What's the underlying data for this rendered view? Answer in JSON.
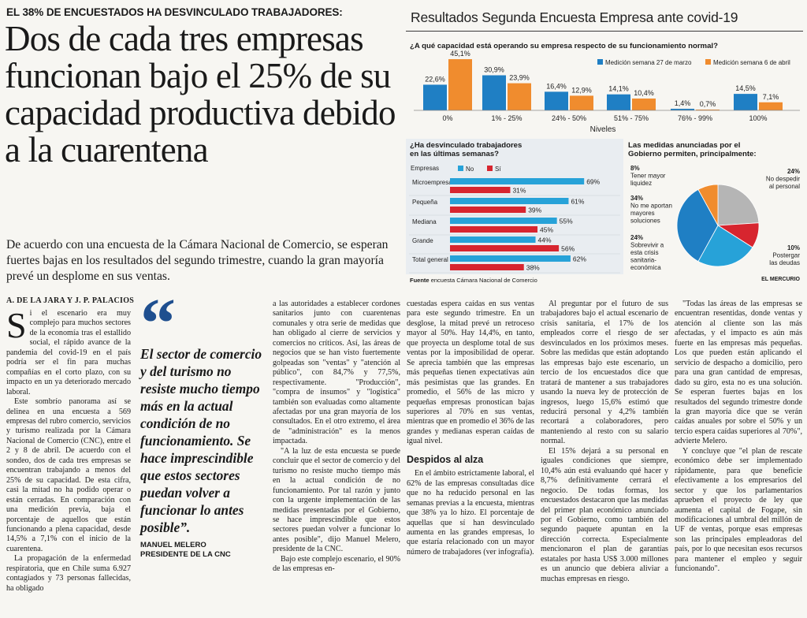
{
  "kicker": "EL 38% DE ENCUESTADOS HA DESVINCULADO TRABAJADORES:",
  "headline": "Dos de cada tres empresas funcionan bajo el 25% de su capacidad productiva debido a la cuarentena",
  "deck": "De acuerdo con una encuesta de la Cámara Nacional de Comercio, se esperan fuertes bajas en los resultados del segundo trimestre, cuando la gran mayoría prevé un desplome en sus ventas.",
  "byline": "A. DE LA JARA Y J. P. PALACIOS",
  "quote": {
    "mark": "“",
    "text": "El sector de comercio y del turismo no resiste mucho tiempo más en la actual condición de no funcionamiento. Se hace imprescindible que estos sectores puedan volver a funcionar lo antes posible”.",
    "author": "MANUEL MELERO",
    "author_role": "PRESIDENTE DE LA CNC"
  },
  "body": {
    "col1": {
      "dropcap": "S",
      "p1": "i el escenario era muy complejo para muchos sectores de la economía tras el estallido social, el rápido avance de la pandemia del covid-19 en el país podría ser el fin para muchas compañías en el corto plazo, con su impacto en un ya deteriorado mercado laboral.",
      "p2": "Este sombrío panorama así se delinea en una encuesta a 569 empresas del rubro comercio, servicios y turismo realizada por la Cámara Nacional de Comercio (CNC), entre el 2 y 8 de abril. De acuerdo con el sondeo, dos de cada tres empresas se encuentran trabajando a menos del 25% de su capacidad. De esta cifra, casi la mitad no ha podido operar o están cerradas. En comparación con una medición previa, baja el porcentaje de aquellos que están funcionando a plena capacidad, desde 14,5% a 7,1% con el inicio de la cuarentena.",
      "p3": "La propagación de la enfermedad respiratoria, que en Chile suma 6.927 contagiados y 73 personas fallecidas, ha obligado"
    },
    "col3": {
      "p1": "a las autoridades a establecer cordones sanitarios junto con cuarentenas comunales y otra serie de medidas que han obligado al cierre de servicios y comercios no críticos. Así, las áreas de negocios que se han visto fuertemente golpeadas son \"ventas\" y \"atención al público\", con 84,7% y 77,5%, respectivamente. \"Producción\", \"compra de insumos\" y \"logística\" también son evaluadas como altamente afectadas por una gran mayoría de los consultados. En el otro extremo, el área de \"administración\" es la menos impactada.",
      "p2": "\"A la luz de esta encuesta se puede concluir que el sector de comercio y del turismo no resiste mucho tiempo más en la actual condición de no funcionamiento. Por tal razón y junto con la urgente implementación de las medidas presentadas por el Gobierno, se hace imprescindible que estos sectores puedan volver a funcionar lo antes posible\", dijo Manuel Melero, presidente de la CNC.",
      "p3": "Bajo este complejo escenario, el 90% de las empresas en-"
    },
    "col4": {
      "p1": "cuestadas espera caídas en sus ventas para este segundo trimestre. En un desglose, la mitad prevé un retroceso mayor al 50%. Hay 14,4%, en tanto, que proyecta un desplome total de sus ventas por la imposibilidad de operar. Se aprecia también que las empresas más pequeñas tienen expectativas aún más pesimistas que las grandes. En promedio, el 56% de las micro y pequeñas empresas pronostican bajas superiores al 70% en sus ventas, mientras que en promedio el 36% de las grandes y medianas esperan caídas de igual nivel.",
      "subhead": "Despidos al alza",
      "p2": "En el ámbito estrictamente laboral, el 62% de las empresas consultadas dice que no ha reducido personal en las semanas previas a la encuesta, mientras que 38% ya lo hizo. El porcentaje de aquellas que sí han desvinculado aumenta en las grandes empresas, lo que estaría relacionado con un mayor número de trabajadores (ver infografía)."
    },
    "col5": {
      "p1": "Al preguntar por el futuro de sus trabajadores bajo el actual escenario de crisis sanitaria, el 17% de los empleados corre el riesgo de ser desvinculados en los próximos meses. Sobre las medidas que están adoptando las empresas bajo este escenario, un tercio de los encuestados dice que tratará de mantener a sus trabajadores usando la nueva ley de protección de ingresos, luego 15,6% estimó que reducirá personal y 4,2% también recortará a colaboradores, pero manteniendo al resto con su salario normal.",
      "p2": "El 15% dejará a su personal en iguales condiciones que siempre, 10,4% aún está evaluando qué hacer y 8,7% definitivamente cerrará el negocio. De todas formas, los encuestados destacaron que las medidas del primer plan económico anunciado por el Gobierno, como también del segundo paquete apuntan en la dirección correcta. Especialmente mencionaron el plan de garantías estatales por hasta US$ 3.000 millones es un anuncio que debiera aliviar a muchas empresas en riesgo."
    },
    "col6": {
      "p1": "\"Todas las áreas de las empresas se encuentran resentidas, donde ventas y atención al cliente son las más afectadas, y el impacto es aún más fuerte en las empresas más pequeñas. Los que pueden están aplicando el servicio de despacho a domicilio, pero para una gran cantidad de empresas, dado su giro, esta no es una solución. Se esperan fuertes bajas en los resultados del segundo trimestre donde la gran mayoría dice que se verán caídas anuales por sobre el 50% y un tercio espera caídas superiores al 70%\", advierte Melero.",
      "p2": "Y concluye que \"el plan de rescate económico debe ser implementado rápidamente, para que beneficie efectivamente a los empresarios del sector y que los parlamentarios aprueben el proyecto de ley que aumenta el capital de Fogape, sin modificaciones al umbral del millón de UF de ventas, porque esas empresas son las principales empleadoras del país, por lo que necesitan esos recursos para mantener el empleo y seguir funcionando\"."
    }
  },
  "infographic": {
    "title": "Resultados Segunda Encuesta Empresa ante covid-19",
    "footer_label": "Fuente",
    "footer_text": "encuesta Cámara Nacional de Comercio",
    "logo": "EL MERCURIO",
    "colors": {
      "blue": "#1f7fc4",
      "orange": "#f08c2e",
      "cyan": "#27a2d8",
      "red": "#d7252f",
      "gray": "#b5b5b5"
    }
  },
  "chart_data": [
    {
      "type": "bar",
      "title": "¿A qué capacidad está operando su empresa respecto de su funcionamiento normal?",
      "xlabel": "Niveles",
      "categories": [
        "0%",
        "1% - 25%",
        "24% - 50%",
        "51% - 75%",
        "76% - 99%",
        "100%"
      ],
      "series": [
        {
          "name": "Medición semana 27 de marzo",
          "values": [
            22.6,
            30.9,
            16.4,
            14.1,
            1.4,
            14.5
          ],
          "labels": [
            "22,6%",
            "30,9%",
            "16,4%",
            "14,1%",
            "1,4%",
            "14,5%"
          ]
        },
        {
          "name": "Medición semana 6 de abril",
          "values": [
            45.1,
            23.9,
            12.9,
            10.4,
            0.7,
            7.1
          ],
          "labels": [
            "45,1%",
            "23,9%",
            "12,9%",
            "10,4%",
            "0,7%",
            "7,1%"
          ]
        }
      ],
      "ylim": [
        0,
        50
      ],
      "legend": "top-right"
    },
    {
      "type": "bar",
      "orientation": "horizontal",
      "title": "¿Ha desvinculado trabajadores en las últimas semanas?",
      "legend_label": "Empresas",
      "categories": [
        "Microempresa",
        "Pequeña",
        "Mediana",
        "Grande",
        "Total general"
      ],
      "series": [
        {
          "name": "No",
          "values": [
            69,
            61,
            55,
            44,
            62
          ],
          "labels": [
            "69%",
            "61%",
            "55%",
            "44%",
            "62%"
          ]
        },
        {
          "name": "Sí",
          "values": [
            31,
            39,
            45,
            56,
            38
          ],
          "labels": [
            "31%",
            "39%",
            "45%",
            "56%",
            "38%"
          ]
        }
      ],
      "xlim": [
        0,
        75
      ],
      "legend": "top"
    },
    {
      "type": "pie",
      "title": "Las medidas anunciadas por el Gobierno permiten, principalmente:",
      "slices": [
        {
          "label": "No despedir al personal",
          "value": 24,
          "value_label": "24%"
        },
        {
          "label": "Postergar las deudas",
          "value": 10,
          "value_label": "10%"
        },
        {
          "label": "Sobrevivir a esta crisis sanitaria-económica",
          "value": 24,
          "value_label": "24%"
        },
        {
          "label": "No me aportan mayores soluciones",
          "value": 34,
          "value_label": "34%"
        },
        {
          "label": "Tener mayor liquidez",
          "value": 8,
          "value_label": "8%"
        }
      ]
    }
  ]
}
